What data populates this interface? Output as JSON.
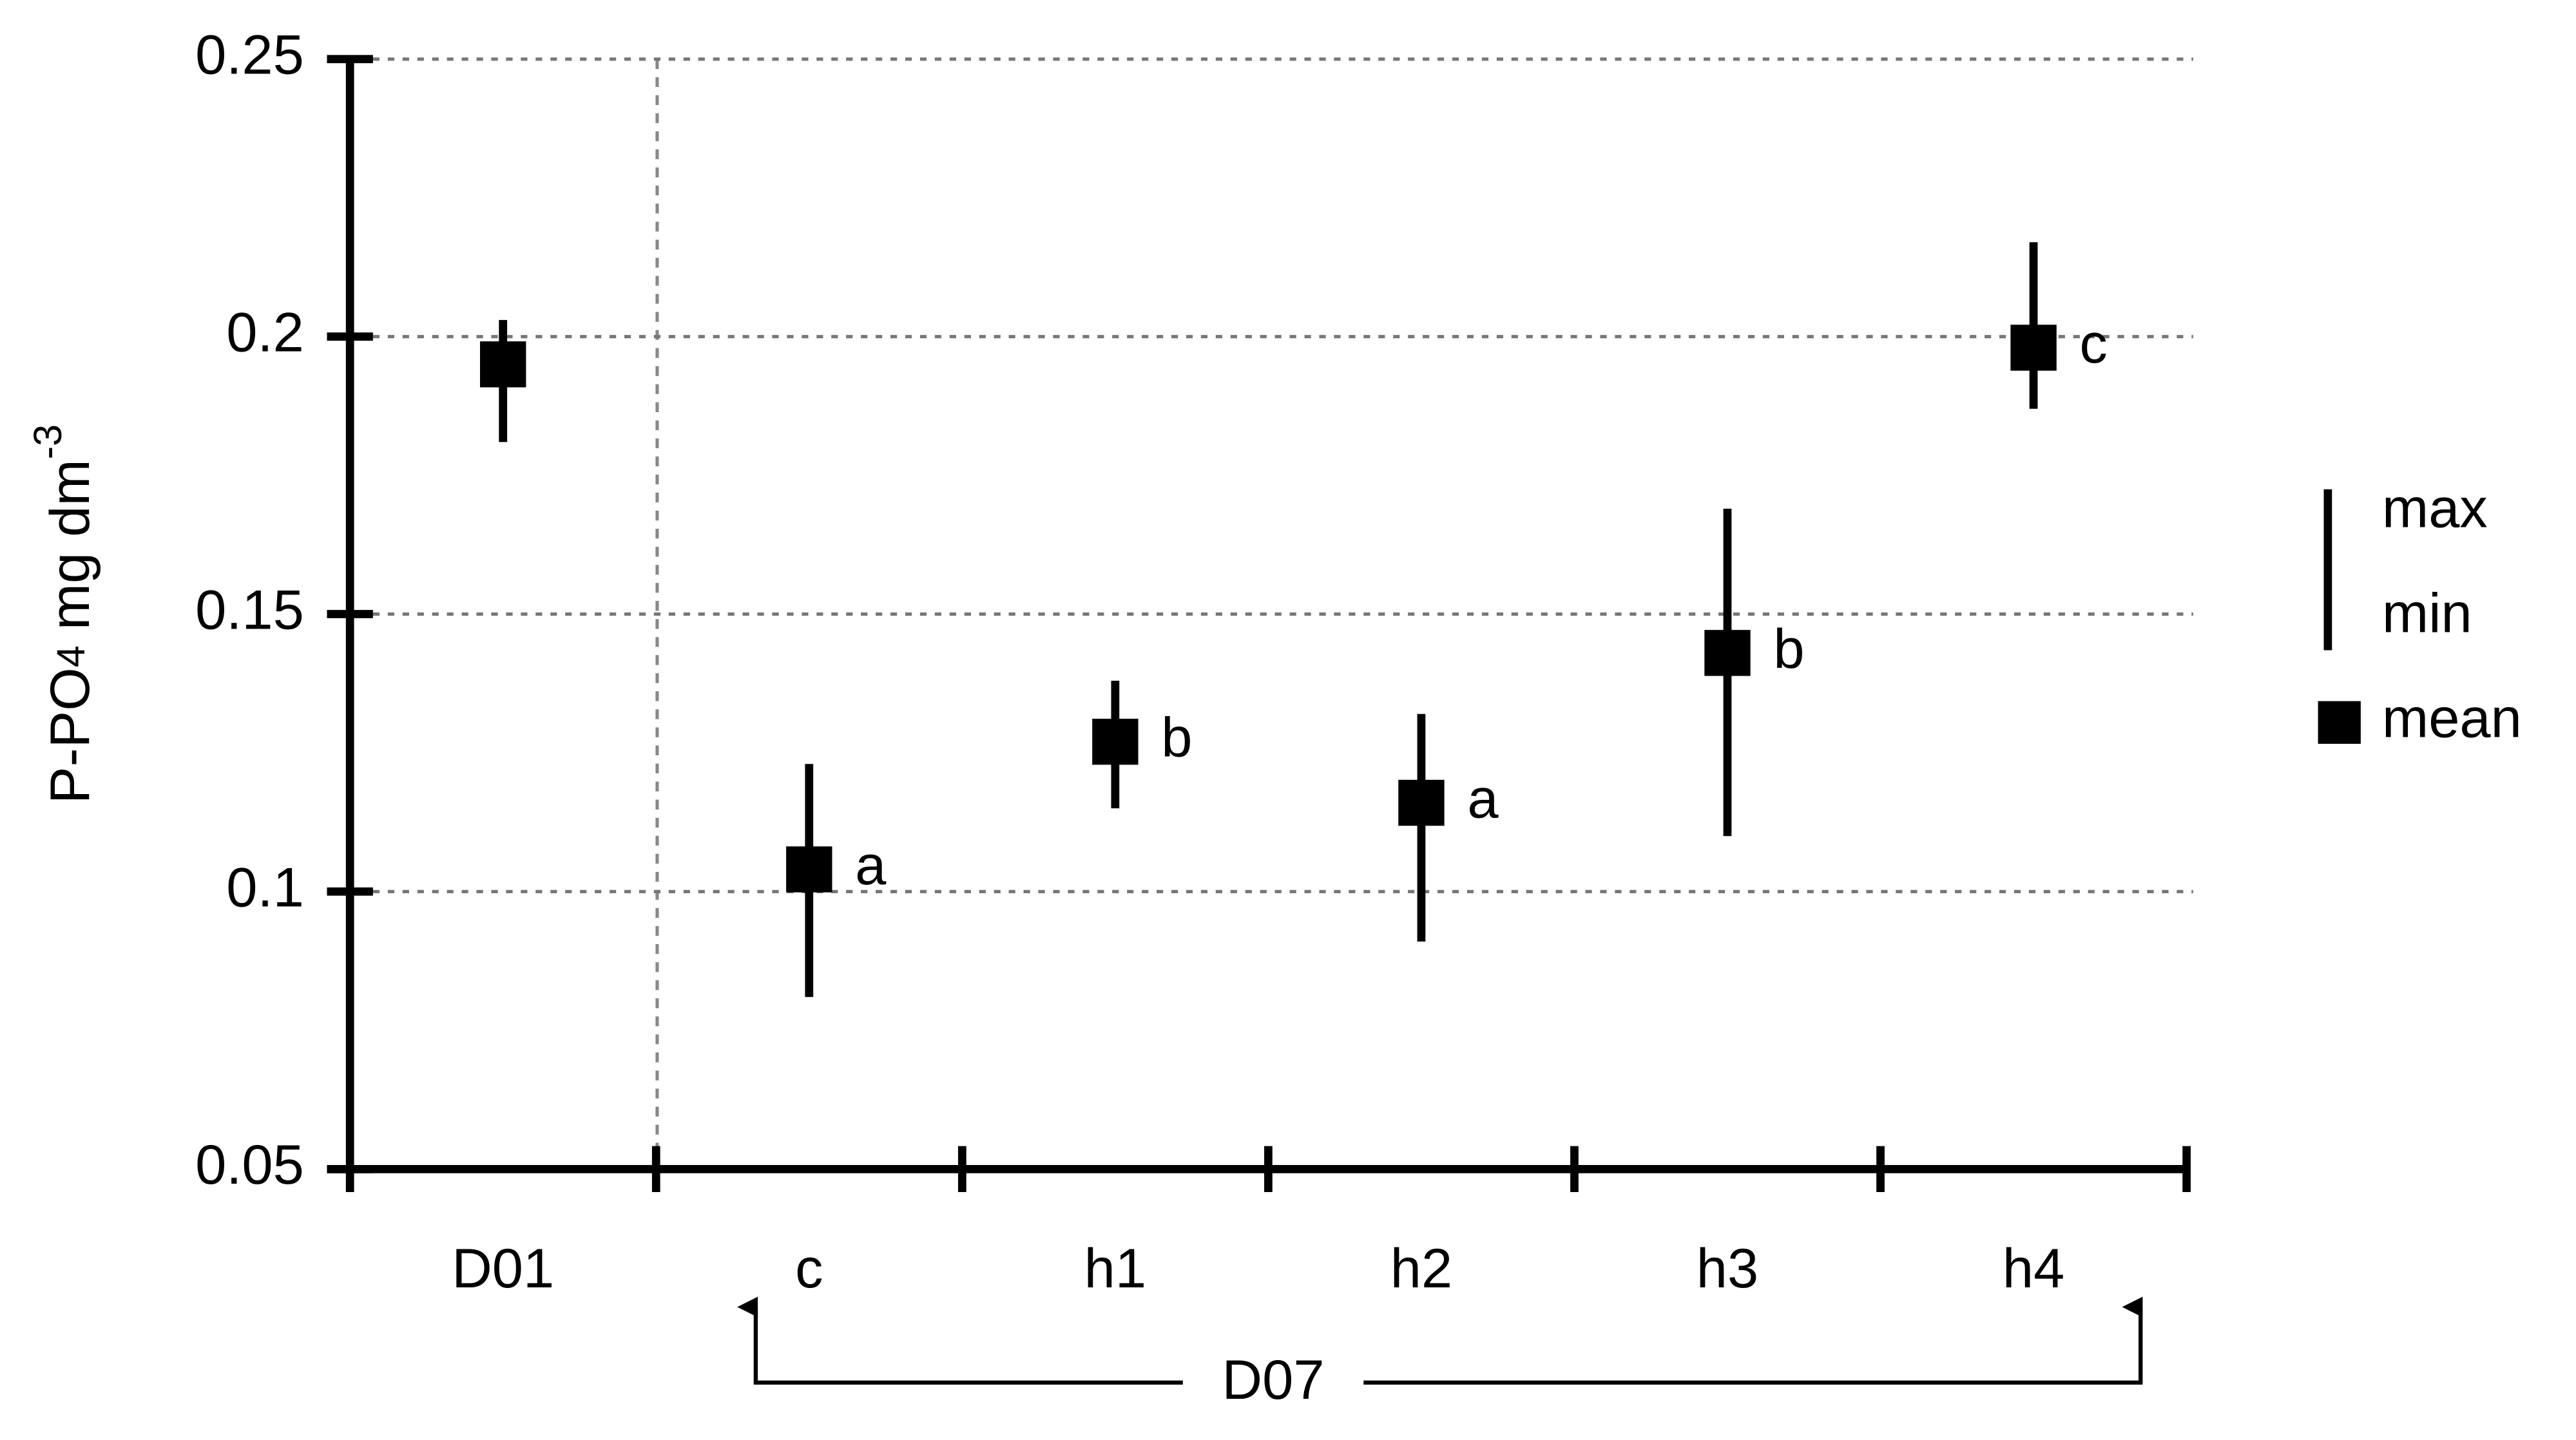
{
  "chart_data": {
    "type": "range_mean",
    "y_label": {
      "text": "P-PO",
      "sub": "4",
      "rest": " mg dm",
      "sup": "-3"
    },
    "categories": [
      "D01",
      "c",
      "h1",
      "h2",
      "h3",
      "h4"
    ],
    "group_label": "D07",
    "series": [
      {
        "name": "mean",
        "color": "#000000",
        "values": [
          0.195,
          0.104,
          0.127,
          0.116,
          0.143,
          0.198
        ],
        "max": [
          0.203,
          0.123,
          0.138,
          0.132,
          0.169,
          0.217
        ],
        "min": [
          0.181,
          0.081,
          0.115,
          0.091,
          0.11,
          0.187
        ],
        "letters": [
          null,
          "a",
          "b",
          "a",
          "b",
          "c"
        ]
      }
    ],
    "range_legend": [
      "max",
      "min"
    ],
    "ylim": [
      0.05,
      0.25
    ],
    "yticks": [
      0.05,
      0.1,
      0.15,
      0.2,
      0.25
    ],
    "grid": true
  }
}
